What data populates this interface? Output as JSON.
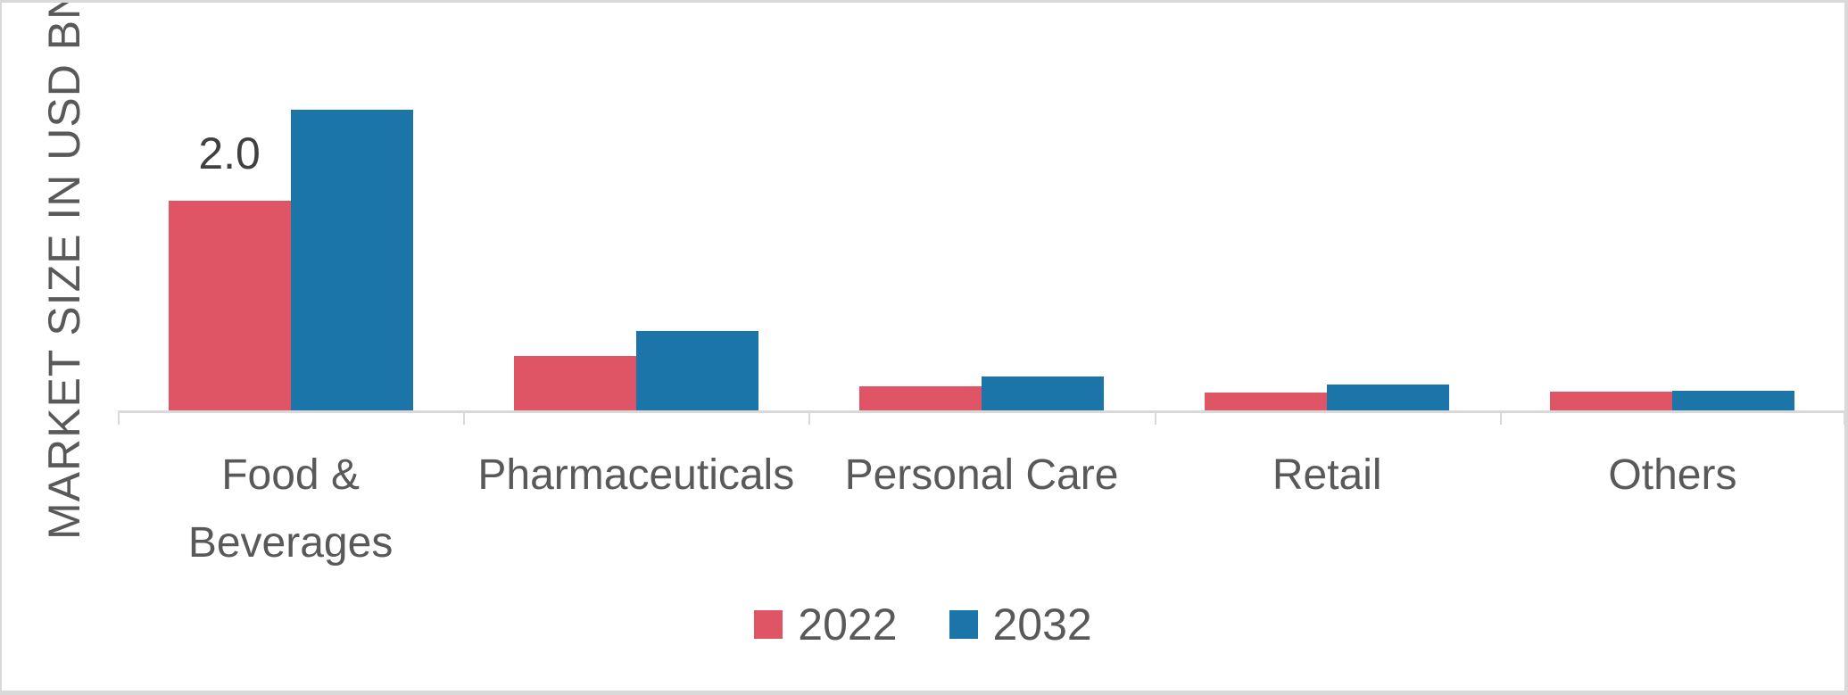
{
  "chart_data": {
    "type": "bar",
    "title": "",
    "xlabel": "",
    "ylabel": "MARKET SIZE IN USD BN",
    "categories": [
      "Food & Beverages",
      "Pharmaceuticals",
      "Personal Care",
      "Retail",
      "Others"
    ],
    "series": [
      {
        "name": "2022",
        "color": "#E05566",
        "values": [
          2.0,
          0.52,
          0.23,
          0.17,
          0.18
        ],
        "data_labels": [
          "2.0",
          "",
          "",
          "",
          ""
        ]
      },
      {
        "name": "2032",
        "color": "#1B75A8",
        "values": [
          2.87,
          0.76,
          0.32,
          0.25,
          0.19
        ],
        "data_labels": [
          "",
          "",
          "",
          "",
          ""
        ]
      }
    ],
    "ylim": [
      0,
      3.2
    ],
    "y_axis_ticks_visible": false,
    "grid": false,
    "legend_position": "bottom",
    "axis_color": "#D9D9D9",
    "label_color": "#595959",
    "data_label_color": "#404040",
    "background_color": "#FFFFFF"
  }
}
